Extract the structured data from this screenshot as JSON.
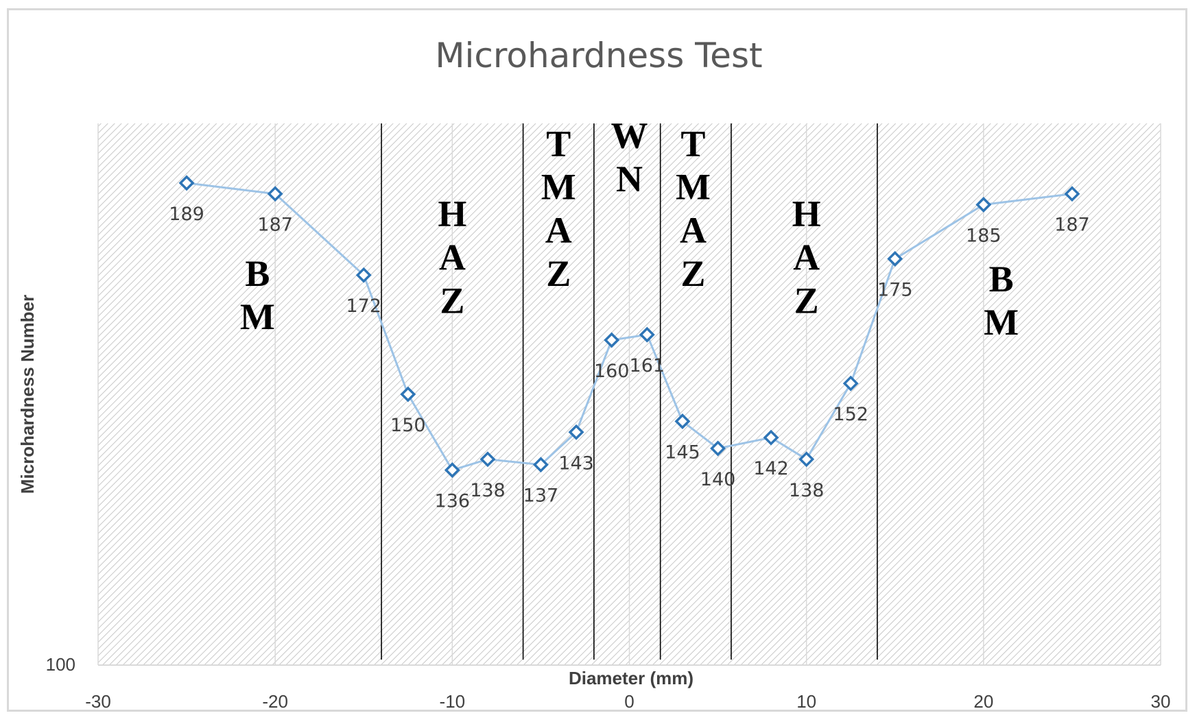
{
  "chart_data": {
    "type": "line",
    "title": "Microhardness Test",
    "xlabel": "Diameter (mm)",
    "ylabel": "Microhardness Number",
    "xlim": [
      -30,
      30
    ],
    "xticks": [
      -30,
      -20,
      -10,
      0,
      10,
      20,
      30
    ],
    "ylim": [
      100,
      200
    ],
    "yticks": [
      100
    ],
    "series": [
      {
        "name": "Microhardness",
        "color": "#2e75b6",
        "line_color": "#9dc3e6",
        "marker": "diamond",
        "x": [
          -25,
          -20,
          -15,
          -12.5,
          -10,
          -8,
          -5,
          -3,
          -1,
          1,
          3,
          5,
          8,
          10,
          12.5,
          15,
          20,
          25
        ],
        "y": [
          189,
          187,
          172,
          150,
          136,
          138,
          137,
          143,
          160,
          161,
          145,
          140,
          142,
          138,
          152,
          175,
          185,
          187
        ],
        "labels": [
          "189",
          "187",
          "172",
          "150",
          "136",
          "138",
          "137",
          "143",
          "160",
          "161",
          "145",
          "140",
          "142",
          "138",
          "152",
          "175",
          "185",
          "187"
        ]
      }
    ],
    "zone_boundaries": [
      -14,
      -6,
      -2,
      1.75,
      5.75,
      14
    ],
    "zones": [
      {
        "name": "BM-left",
        "lines": [
          "B",
          "M"
        ],
        "x": -21,
        "y": [
          170,
          162
        ]
      },
      {
        "name": "HAZ-left",
        "lines": [
          "H",
          "A",
          "Z"
        ],
        "x": -10,
        "y": [
          181,
          173,
          165
        ]
      },
      {
        "name": "TMAZ-left",
        "lines": [
          "T",
          "M",
          "A",
          "Z"
        ],
        "x": -4,
        "y": [
          194,
          186,
          178,
          170
        ]
      },
      {
        "name": "WN",
        "lines": [
          "W",
          "N"
        ],
        "x": 0,
        "y": [
          195.5,
          187.5
        ]
      },
      {
        "name": "TMAZ-right",
        "lines": [
          "T",
          "M",
          "A",
          "Z"
        ],
        "x": 3.6,
        "y": [
          194,
          186,
          178,
          170
        ]
      },
      {
        "name": "HAZ-right",
        "lines": [
          "H",
          "A",
          "Z"
        ],
        "x": 10,
        "y": [
          181,
          173,
          165
        ]
      },
      {
        "name": "BM-right",
        "lines": [
          "B",
          "M"
        ],
        "x": 21,
        "y": [
          169,
          161
        ]
      }
    ]
  }
}
